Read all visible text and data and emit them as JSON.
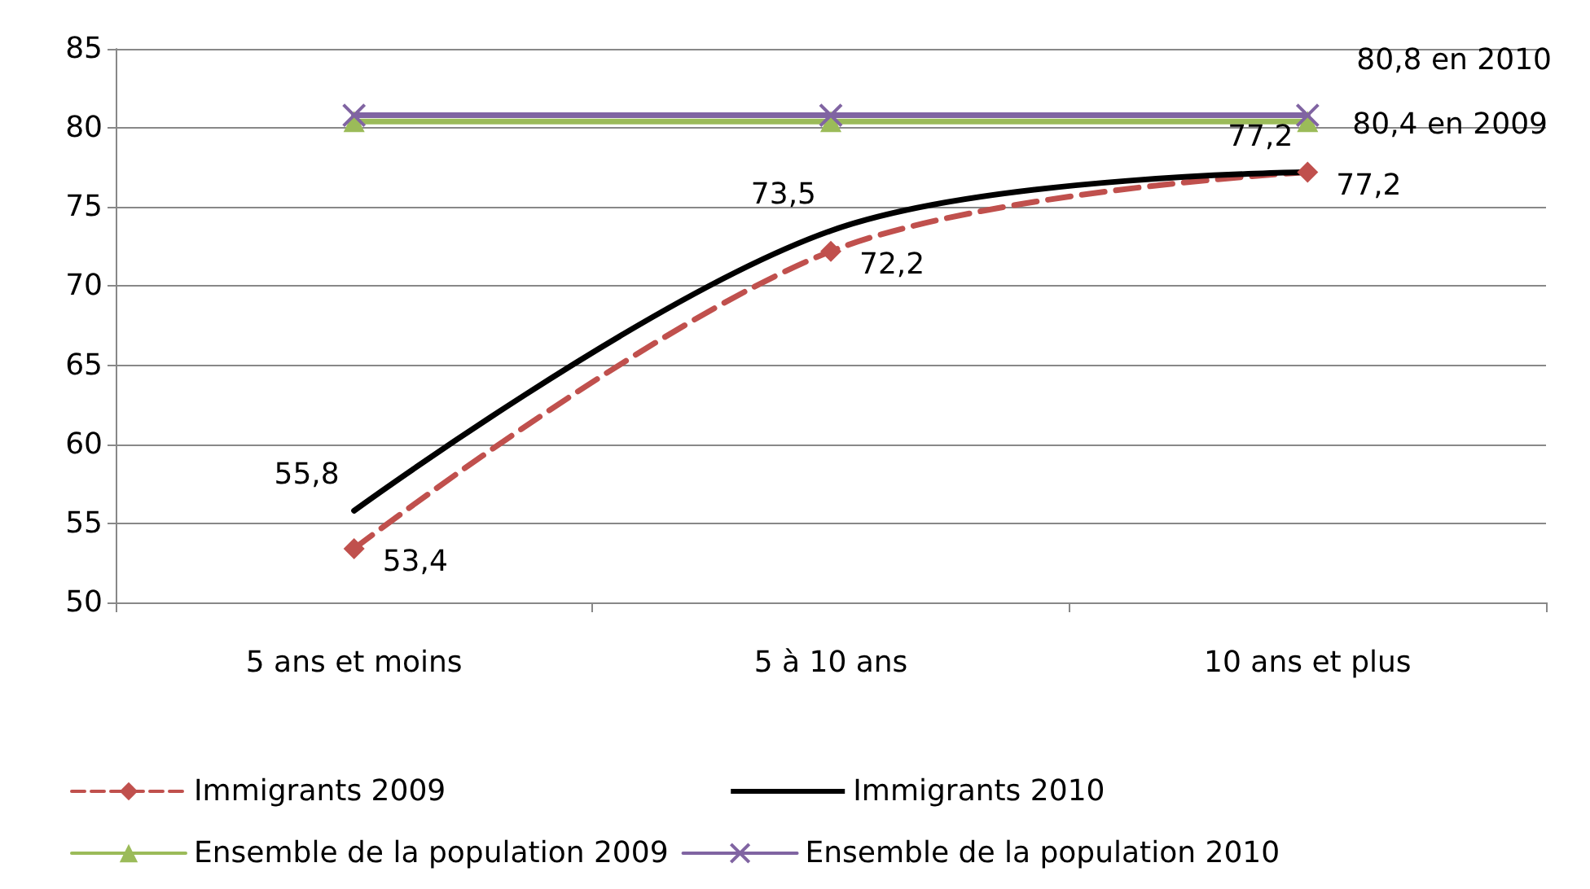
{
  "chart_data": {
    "type": "line",
    "categories": [
      "5 ans et moins",
      "5 à 10 ans",
      "10 ans et plus"
    ],
    "ylim": [
      50,
      85
    ],
    "yticks": [
      50,
      55,
      60,
      65,
      70,
      75,
      80,
      85
    ],
    "grid": "y",
    "legend": "bottom",
    "series": [
      {
        "name": "Immigrants 2009",
        "color": "#c0504d",
        "values": [
          53.4,
          72.2,
          77.2
        ],
        "marker": "diamond",
        "line_style": "dashed",
        "value_labels": [
          "53,4",
          "72,2",
          "77,2"
        ]
      },
      {
        "name": "Immigrants 2010",
        "color": "#000000",
        "values": [
          55.8,
          73.5,
          77.2
        ],
        "marker": "none",
        "line_style": "solid",
        "value_labels": [
          "55,8",
          "73,5",
          "77,2"
        ]
      },
      {
        "name": "Ensemble de la population 2009",
        "color": "#9bbb59",
        "values": [
          80.4,
          80.4,
          80.4
        ],
        "marker": "triangle",
        "line_style": "solid",
        "value_labels": [
          null,
          null,
          "80,4 en 2009"
        ]
      },
      {
        "name": "Ensemble de la population 2010",
        "color": "#8064a2",
        "values": [
          80.8,
          80.8,
          80.8
        ],
        "marker": "cross",
        "line_style": "solid",
        "value_labels": [
          null,
          null,
          "80,8 en 2010"
        ]
      }
    ]
  }
}
